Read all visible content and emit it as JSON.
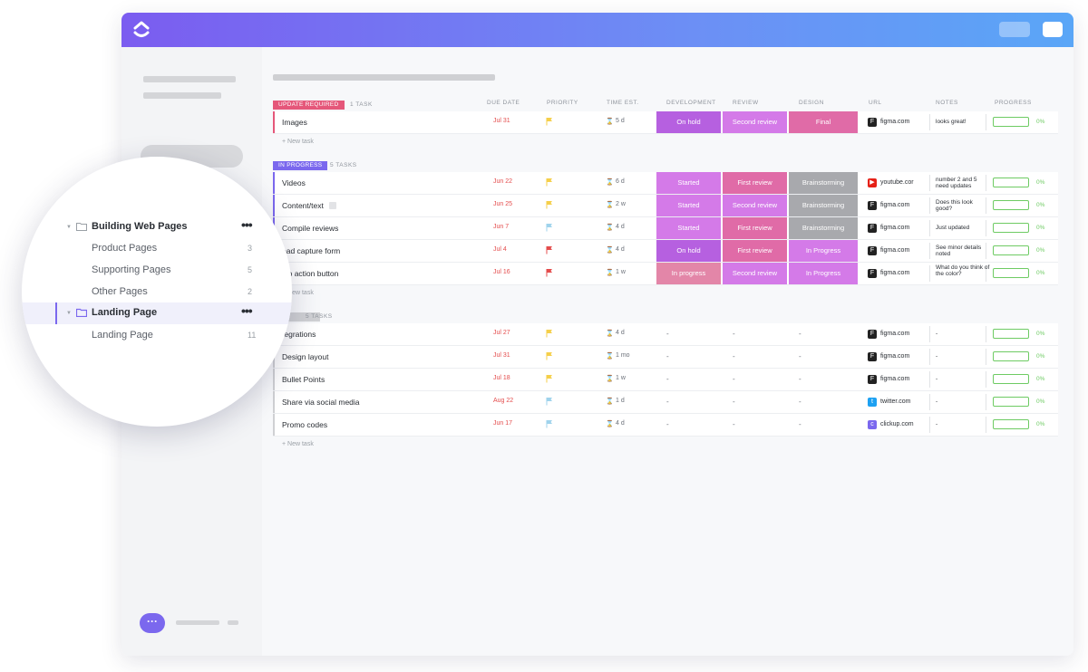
{
  "colors": {
    "accent": "#7b68ee",
    "update_required": "#e5577a",
    "in_progress": "#7b68ee",
    "due_red": "#e44c4c",
    "progress_green": "#6ecb63",
    "purple": "#b660e0",
    "light_purple": "#d47ae8",
    "pink": "#e06ba7",
    "gray": "#a8a9ad",
    "rose": "#e386a8"
  },
  "columns": {
    "due_date": "DUE DATE",
    "priority": "PRIORITY",
    "time_est": "TIME EST.",
    "development": "DEVELOPMENT",
    "review": "REVIEW",
    "design": "DESIGN",
    "url": "URL",
    "notes": "NOTES",
    "progress": "PROGRESS"
  },
  "new_task_label": "+ New task",
  "groups": [
    {
      "status": "UPDATE REQUIRED",
      "count": "1 TASK",
      "tasks": [
        {
          "name": "Images",
          "due": "Jul 31",
          "flag": "yellow",
          "est": "5 d",
          "dev": "On hold",
          "rev": "Second review",
          "des": "Final",
          "url": "figma.com",
          "url_icon": "figma-icon",
          "notes": "looks great!",
          "progress": "0%"
        }
      ]
    },
    {
      "status": "IN PROGRESS",
      "count": "5 TASKS",
      "tasks": [
        {
          "name": "Videos",
          "due": "Jun 22",
          "flag": "yellow",
          "est": "6 d",
          "dev": "Started",
          "rev": "First review",
          "des": "Brainstorming",
          "url": "youtube.cor",
          "url_icon": "youtube-icon",
          "notes": "number 2 and 5 need updates",
          "progress": "0%"
        },
        {
          "name": "Content/text",
          "due": "Jun 25",
          "flag": "yellow",
          "est": "2 w",
          "dev": "Started",
          "rev": "Second review",
          "des": "Brainstorming",
          "url": "figma.com",
          "url_icon": "figma-icon",
          "notes": "Does this look good?",
          "progress": "0%"
        },
        {
          "name": "Compile reviews",
          "due": "Jun 7",
          "flag": "blue",
          "est": "4 d",
          "dev": "Started",
          "rev": "First review",
          "des": "Brainstorming",
          "url": "figma.com",
          "url_icon": "figma-icon",
          "notes": "Just updated",
          "progress": "0%"
        },
        {
          "name": "ead capture form",
          "due": "Jul 4",
          "flag": "red",
          "est": "4 d",
          "dev": "On hold",
          "rev": "First review",
          "des": "In Progress",
          "url": "figma.com",
          "url_icon": "figma-icon",
          "notes": "See minor details noted",
          "progress": "0%"
        },
        {
          "name": "l to action button",
          "due": "Jul 16",
          "flag": "red",
          "est": "1 w",
          "dev": "In progress",
          "rev": "Second review",
          "des": "In Progress",
          "url": "figma.com",
          "url_icon": "figma-icon",
          "notes": "What do you think of the color?",
          "progress": "0%"
        }
      ]
    },
    {
      "status": "",
      "count": "5 TASKS",
      "tasks": [
        {
          "name": "tegrations",
          "due": "Jul 27",
          "flag": "yellow",
          "est": "4 d",
          "dev": "-",
          "rev": "-",
          "des": "-",
          "url": "figma.com",
          "url_icon": "figma-icon",
          "notes": "-",
          "progress": "0%"
        },
        {
          "name": "Design layout",
          "due": "Jul 31",
          "flag": "yellow",
          "est": "1 mo",
          "dev": "-",
          "rev": "-",
          "des": "-",
          "url": "figma.com",
          "url_icon": "figma-icon",
          "notes": "-",
          "progress": "0%"
        },
        {
          "name": "Bullet Points",
          "due": "Jul 18",
          "flag": "yellow",
          "est": "1 w",
          "dev": "-",
          "rev": "-",
          "des": "-",
          "url": "figma.com",
          "url_icon": "figma-icon",
          "notes": "-",
          "progress": "0%"
        },
        {
          "name": "Share via social media",
          "due": "Aug 22",
          "flag": "blue",
          "est": "1 d",
          "dev": "-",
          "rev": "-",
          "des": "-",
          "url": "twitter.com",
          "url_icon": "twitter-icon",
          "notes": "-",
          "progress": "0%"
        },
        {
          "name": "Promo codes",
          "due": "Jun 17",
          "flag": "blue",
          "est": "4 d",
          "dev": "-",
          "rev": "-",
          "des": "-",
          "url": "clickup.com",
          "url_icon": "clickup-icon",
          "notes": "-",
          "progress": "0%"
        }
      ]
    }
  ],
  "sidebar_zoom": {
    "folder": {
      "label": "Building Web Pages"
    },
    "items": [
      {
        "label": "Product Pages",
        "count": "3"
      },
      {
        "label": "Supporting Pages",
        "count": "5"
      },
      {
        "label": "Other Pages",
        "count": "2"
      }
    ],
    "active_folder": {
      "label": "Landing Page"
    },
    "sub_items": [
      {
        "label": "Landing Page",
        "count": "11"
      }
    ]
  }
}
